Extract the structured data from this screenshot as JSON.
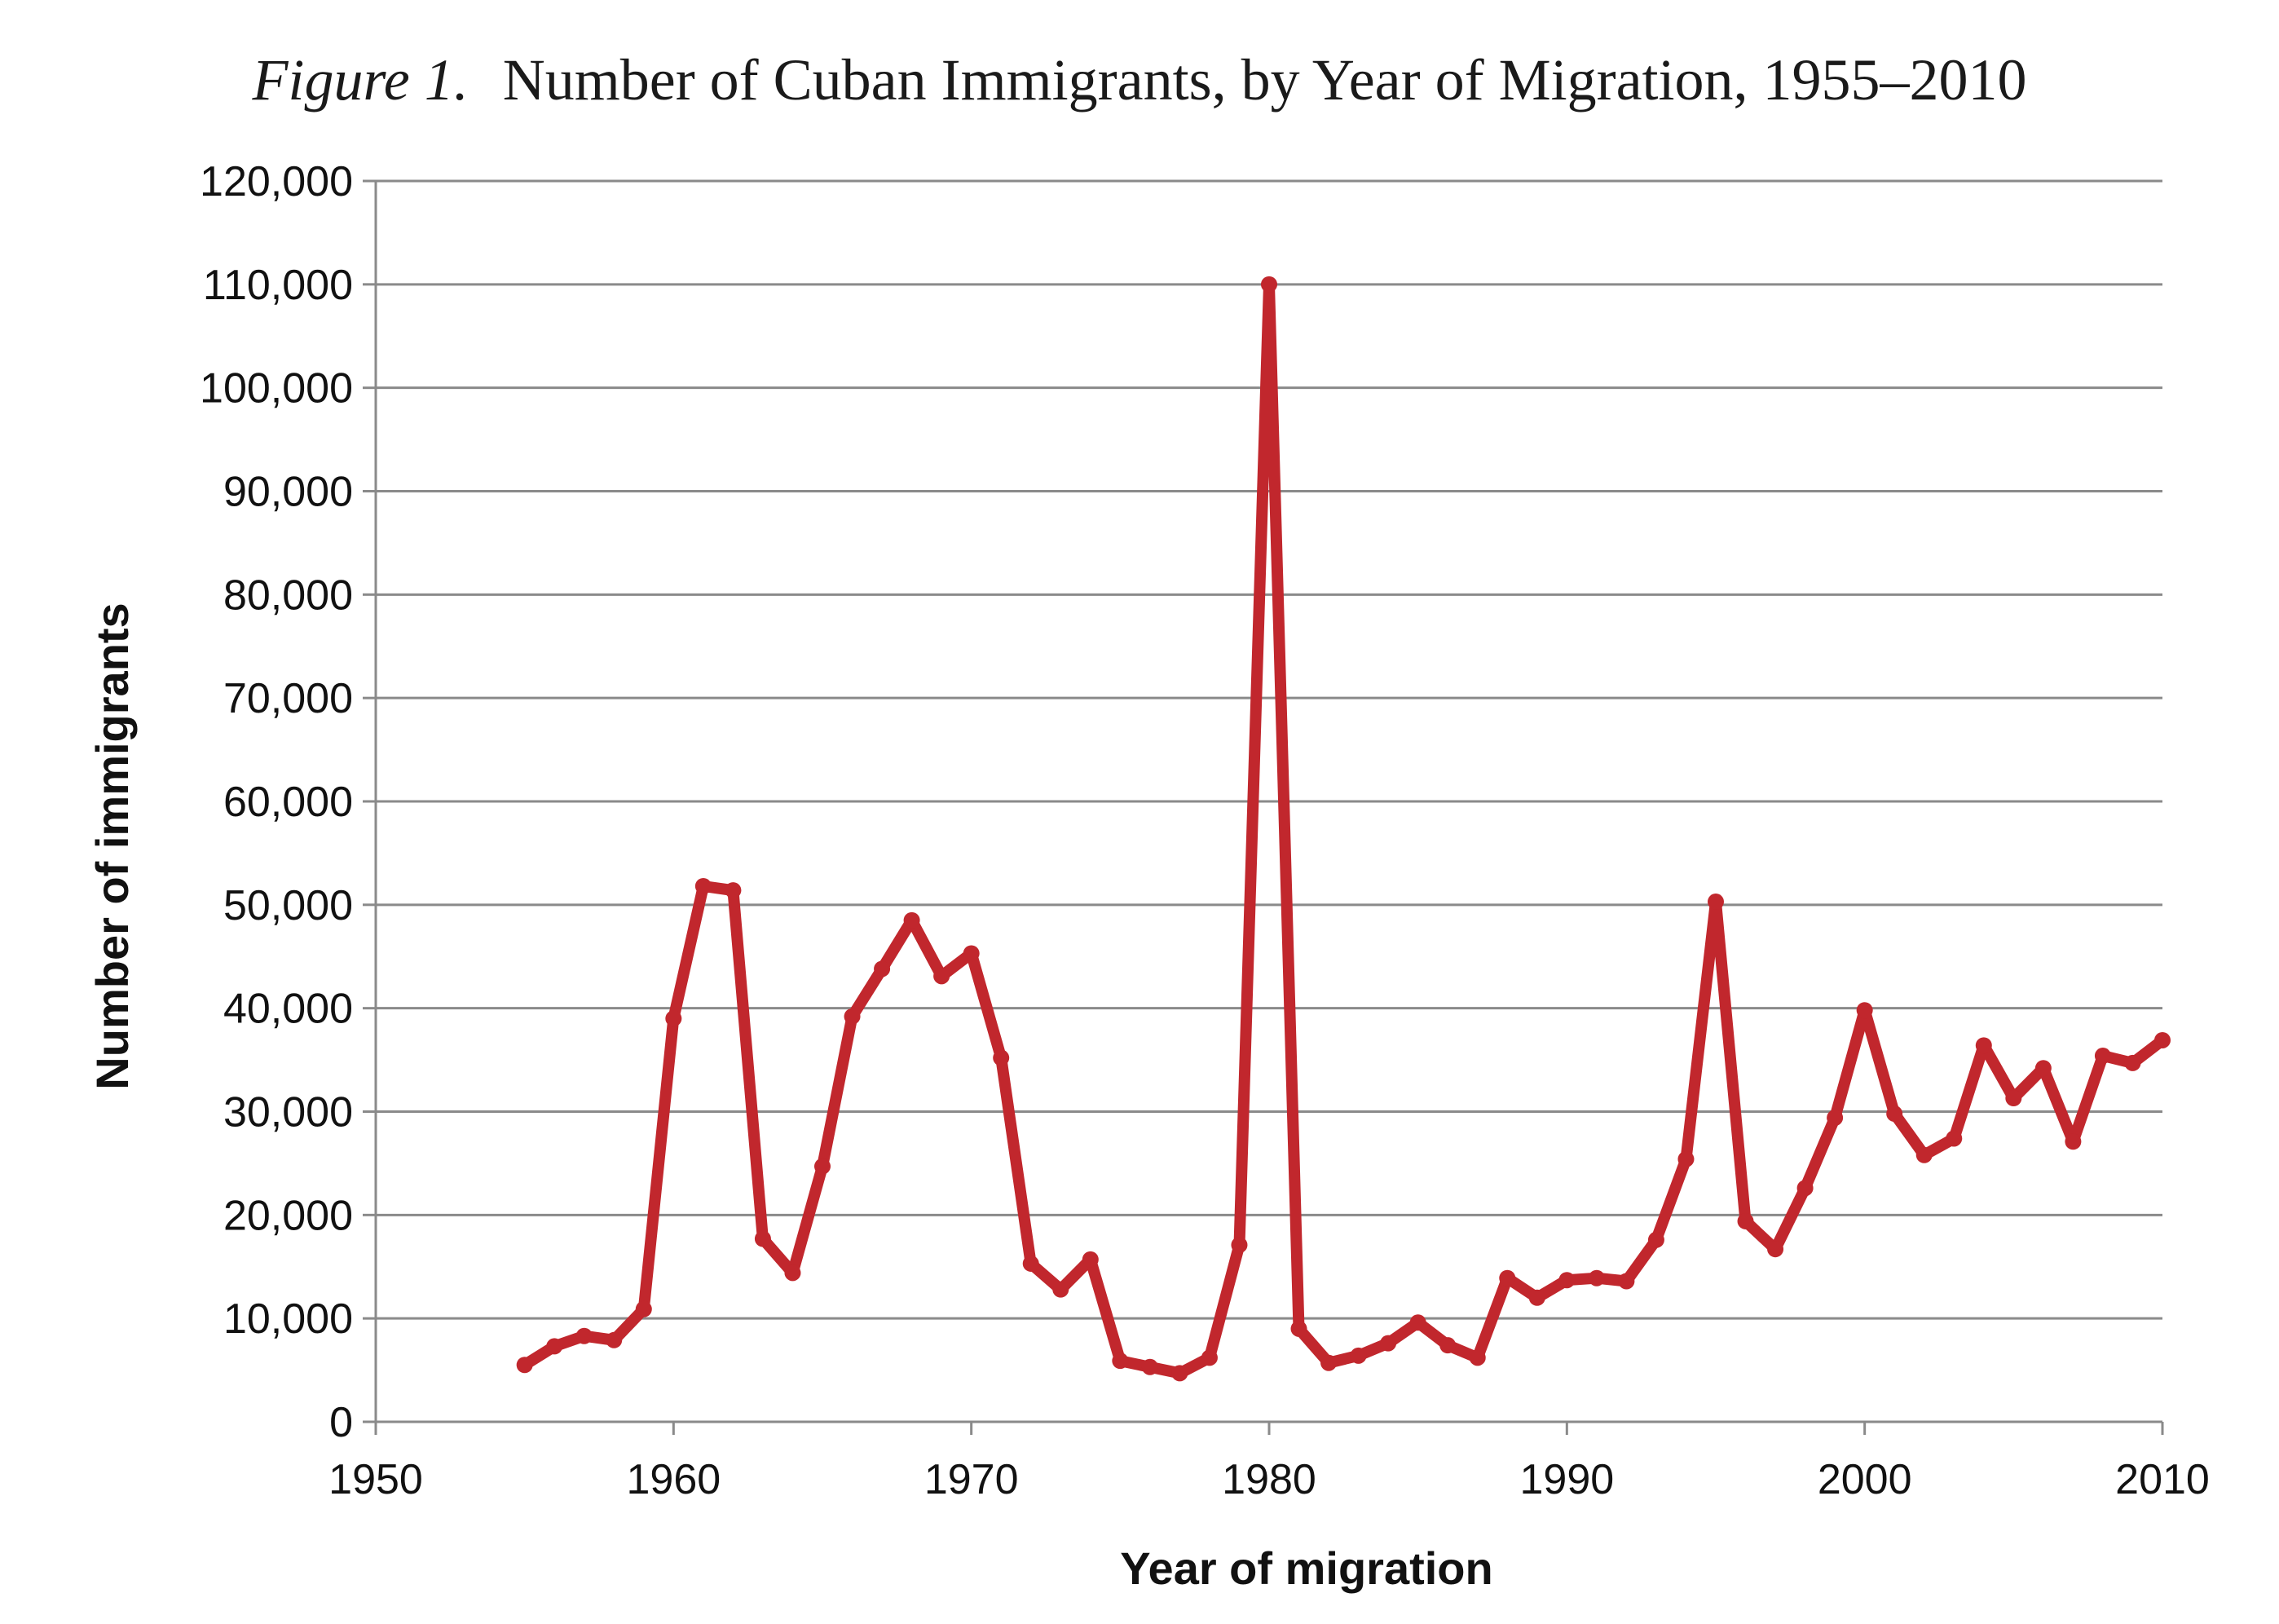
{
  "title": {
    "prefix": "Figure 1.",
    "text": "Number of Cuban Immigrants, by Year of Migration, 1955–2010"
  },
  "colors": {
    "series": "#c1272d",
    "grid": "#8a8a8a",
    "text": "#111111"
  },
  "chart_data": {
    "type": "line",
    "title": "Number of Cuban Immigrants, by Year of Migration, 1955–2010",
    "xlabel": "Year of migration",
    "ylabel": "Number of immigrants",
    "xlim": [
      1950,
      2010
    ],
    "ylim": [
      0,
      120000
    ],
    "xticks": [
      1950,
      1960,
      1970,
      1980,
      1990,
      2000,
      2010
    ],
    "yticks": [
      0,
      10000,
      20000,
      30000,
      40000,
      50000,
      60000,
      70000,
      80000,
      90000,
      100000,
      110000,
      120000
    ],
    "ytick_labels": [
      "0",
      "10,000",
      "20,000",
      "30,000",
      "40,000",
      "50,000",
      "60,000",
      "70,000",
      "80,000",
      "90,000",
      "100,000",
      "110,000",
      "120,000"
    ],
    "grid": true,
    "legend": "none",
    "markers": true,
    "series": [
      {
        "x": [
          1955,
          1956,
          1957,
          1958,
          1959,
          1960,
          1961,
          1962,
          1963,
          1964,
          1965,
          1966,
          1967,
          1968,
          1969,
          1970,
          1971,
          1972,
          1973,
          1974,
          1975,
          1976,
          1977,
          1978,
          1979,
          1980,
          1981,
          1982,
          1983,
          1984,
          1985,
          1986,
          1987,
          1988,
          1989,
          1990,
          1991,
          1992,
          1993,
          1994,
          1995,
          1996,
          1997,
          1998,
          1999,
          2000,
          2001,
          2002,
          2003,
          2004,
          2005,
          2006,
          2007,
          2008,
          2009,
          2010
        ],
        "values": [
          5500,
          7300,
          8300,
          7900,
          10900,
          39000,
          51800,
          51400,
          17700,
          14400,
          24700,
          39200,
          43800,
          48500,
          43100,
          45300,
          35200,
          15300,
          12800,
          15700,
          5900,
          5300,
          4700,
          6200,
          17100,
          110000,
          9000,
          5700,
          6400,
          7600,
          9600,
          7400,
          6200,
          13900,
          12000,
          13700,
          13900,
          13600,
          17600,
          25400,
          50300,
          19400,
          16700,
          22600,
          29400,
          39800,
          29800,
          25800,
          27400,
          36400,
          31300,
          34200,
          27100,
          35400,
          34700,
          36900
        ]
      }
    ]
  }
}
